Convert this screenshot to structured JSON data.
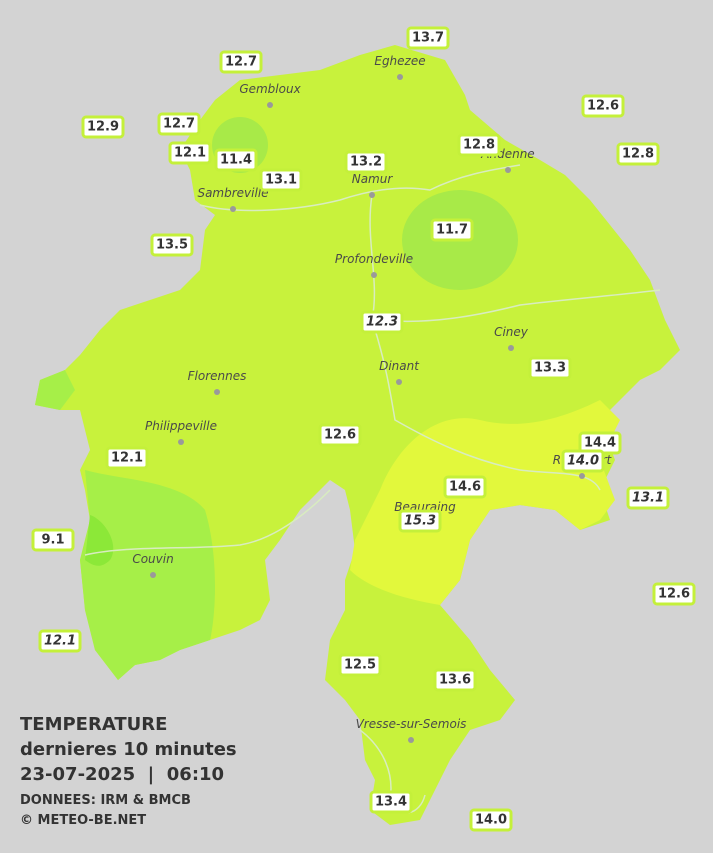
{
  "towns": [
    "Eghezee",
    "Gembloux",
    "Andenne",
    "Namur",
    "Sambreville",
    "Profondeville",
    "Ciney",
    "Dinant",
    "Florennes",
    "Philippeville",
    "Rochefort",
    "Beauraing",
    "Couvin",
    "Vresse-sur-Semois"
  ],
  "stations": [
    "13.7",
    "12.7",
    "12.6",
    "12.9",
    "12.7",
    "12.8",
    "12.8",
    "12.1",
    "11.4",
    "13.2",
    "13.1",
    "13.5",
    "11.7",
    "12.3",
    "13.3",
    "12.6",
    "14.4",
    "14.0",
    "12.1",
    "14.6",
    "13.1",
    "15.3",
    "9.1",
    "12.6",
    "12.1",
    "12.5",
    "13.6",
    "13.4",
    "14.0"
  ],
  "legend": {
    "title": "TEMPERATURE",
    "subtitle": "dernieres 10 minutes",
    "datetime": "23-07-2025  |  06:10",
    "source": "DONNEES: IRM & BMCB",
    "credit": "© METEO-BE.NET"
  }
}
